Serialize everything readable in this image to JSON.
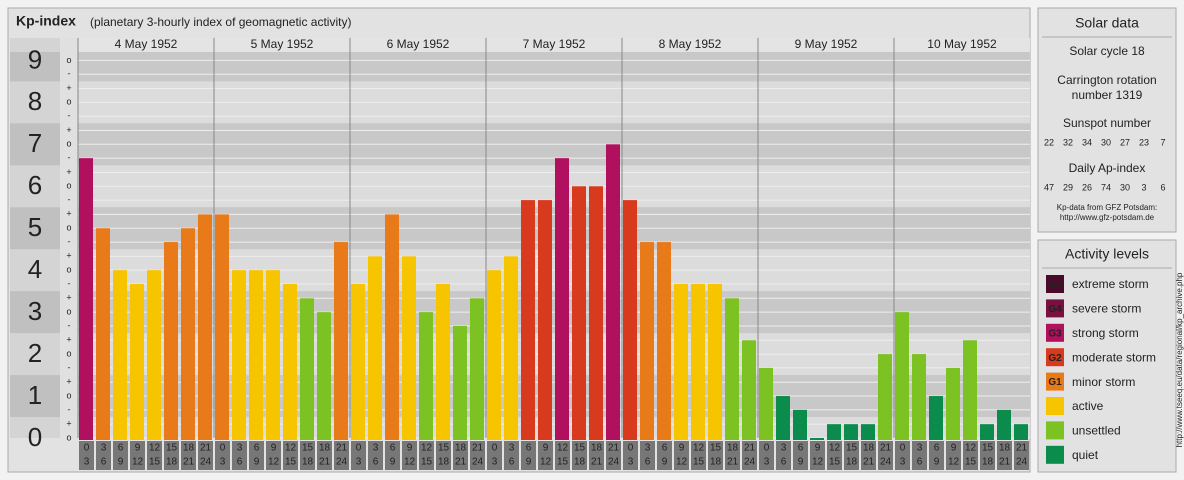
{
  "chart_data": {
    "type": "bar",
    "title": "Kp-index",
    "subtitle": "(planetary 3-hourly index of geomagnetic activity)",
    "ylim": [
      0,
      9.2
    ],
    "yticks": [
      0,
      1,
      2,
      3,
      4,
      5,
      6,
      7,
      8,
      9
    ],
    "kp_ticks": [
      {
        "value": 9,
        "label": "o"
      },
      {
        "value": 8.67,
        "label": "-"
      },
      {
        "value": 8.33,
        "label": "+"
      },
      {
        "value": 8,
        "label": "o"
      },
      {
        "value": 7.67,
        "label": "-"
      },
      {
        "value": 7.33,
        "label": "+"
      },
      {
        "value": 7,
        "label": "o"
      },
      {
        "value": 6.67,
        "label": "-"
      },
      {
        "value": 6.33,
        "label": "+"
      },
      {
        "value": 6,
        "label": "o"
      },
      {
        "value": 5.67,
        "label": "-"
      },
      {
        "value": 5.33,
        "label": "+"
      },
      {
        "value": 5,
        "label": "o"
      },
      {
        "value": 4.67,
        "label": "-"
      },
      {
        "value": 4.33,
        "label": "+"
      },
      {
        "value": 4,
        "label": "o"
      },
      {
        "value": 3.67,
        "label": "-"
      },
      {
        "value": 3.33,
        "label": "+"
      },
      {
        "value": 3,
        "label": "o"
      },
      {
        "value": 2.67,
        "label": "-"
      },
      {
        "value": 2.33,
        "label": "+"
      },
      {
        "value": 2,
        "label": "o"
      },
      {
        "value": 1.67,
        "label": "-"
      },
      {
        "value": 1.33,
        "label": "+"
      },
      {
        "value": 1,
        "label": "o"
      },
      {
        "value": 0.67,
        "label": "-"
      },
      {
        "value": 0.33,
        "label": "+"
      },
      {
        "value": 0,
        "label": "o"
      }
    ],
    "time_slots": [
      {
        "from": 0,
        "to": 3
      },
      {
        "from": 3,
        "to": 6
      },
      {
        "from": 6,
        "to": 9
      },
      {
        "from": 9,
        "to": 12
      },
      {
        "from": 12,
        "to": 15
      },
      {
        "from": 15,
        "to": 18
      },
      {
        "from": 18,
        "to": 21
      },
      {
        "from": 21,
        "to": 24
      }
    ],
    "days": [
      {
        "date": "4 May 1952",
        "values": [
          6.67,
          5,
          4,
          3.67,
          4,
          4.67,
          5,
          5.33
        ],
        "colors": [
          "#b0105e",
          "#e87a1a",
          "#f7c400",
          "#f7c400",
          "#f7c400",
          "#e87a1a",
          "#e87a1a",
          "#e87a1a"
        ]
      },
      {
        "date": "5 May 1952",
        "values": [
          5.33,
          4,
          4,
          4,
          3.67,
          3.33,
          3,
          4.67
        ],
        "colors": [
          "#e87a1a",
          "#f7c400",
          "#f7c400",
          "#f7c400",
          "#f7c400",
          "#7cc222",
          "#7cc222",
          "#e87a1a"
        ]
      },
      {
        "date": "6 May 1952",
        "values": [
          3.67,
          4.33,
          5.33,
          4.33,
          3,
          3.67,
          2.67,
          3.33
        ],
        "colors": [
          "#f7c400",
          "#f7c400",
          "#e87a1a",
          "#f7c400",
          "#7cc222",
          "#f7c400",
          "#7cc222",
          "#7cc222"
        ]
      },
      {
        "date": "7 May 1952",
        "values": [
          4,
          4.33,
          5.67,
          5.67,
          6.67,
          6,
          6,
          7
        ],
        "colors": [
          "#f7c400",
          "#f7c400",
          "#d83a1e",
          "#d83a1e",
          "#b0105e",
          "#d83a1e",
          "#d83a1e",
          "#b0105e"
        ]
      },
      {
        "date": "8 May 1952",
        "values": [
          5.67,
          4.67,
          4.67,
          3.67,
          3.67,
          3.67,
          3.33,
          2.33
        ],
        "colors": [
          "#d83a1e",
          "#e87a1a",
          "#e87a1a",
          "#f7c400",
          "#f7c400",
          "#f7c400",
          "#7cc222",
          "#7cc222"
        ]
      },
      {
        "date": "9 May 1952",
        "values": [
          1.67,
          1,
          0.67,
          0,
          0.33,
          0.33,
          0.33,
          2
        ],
        "colors": [
          "#7cc222",
          "#0c8c4c",
          "#0c8c4c",
          "#0c8c4c",
          "#0c8c4c",
          "#0c8c4c",
          "#0c8c4c",
          "#7cc222"
        ]
      },
      {
        "date": "10 May 1952",
        "values": [
          3,
          2,
          1,
          1.67,
          2.33,
          0.33,
          0.67,
          0.33
        ],
        "colors": [
          "#7cc222",
          "#7cc222",
          "#0c8c4c",
          "#7cc222",
          "#7cc222",
          "#0c8c4c",
          "#0c8c4c",
          "#0c8c4c"
        ]
      }
    ]
  },
  "solar_data": {
    "title": "Solar data",
    "solar_cycle": "Solar cycle 18",
    "carrington": [
      "Carrington rotation",
      "number 1319"
    ],
    "sunspot_title": "Sunspot number",
    "sunspot_numbers": [
      22,
      32,
      34,
      30,
      27,
      23,
      7
    ],
    "ap_title": "Daily Ap-index",
    "ap_index": [
      47,
      29,
      26,
      74,
      30,
      3,
      6
    ],
    "source": [
      "Kp-data from GFZ Potsdam:",
      "http://www.gfz-potsdam.de"
    ]
  },
  "activity_levels": {
    "title": "Activity levels",
    "items": [
      {
        "code": "G5",
        "label": "extreme storm",
        "color": "#4a0a2a"
      },
      {
        "code": "G4",
        "label": "severe storm",
        "color": "#7a1040"
      },
      {
        "code": "G3",
        "label": "strong storm",
        "color": "#b0105e"
      },
      {
        "code": "G2",
        "label": "moderate storm",
        "color": "#d83a1e"
      },
      {
        "code": "G1",
        "label": "minor storm",
        "color": "#e87a1a"
      },
      {
        "label": "active",
        "color": "#f7c400"
      },
      {
        "label": "unsettled",
        "color": "#7cc222"
      },
      {
        "label": "quiet",
        "color": "#0c8c4c"
      }
    ]
  },
  "credit": "http://www.tseeq.eu/data/regional/kp_archive.php"
}
